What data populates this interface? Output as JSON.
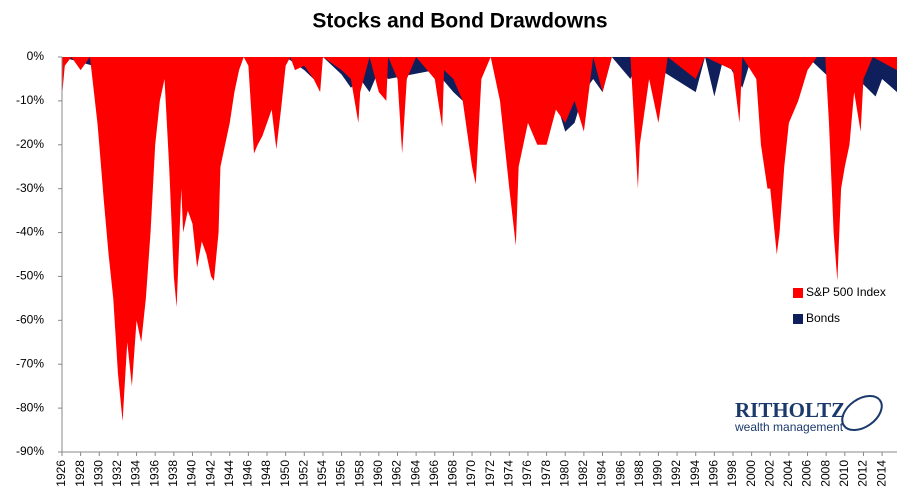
{
  "chart_data": {
    "type": "area",
    "title": "Stocks and Bond Drawdowns",
    "xlim": [
      1926,
      2015.6
    ],
    "ylim": [
      -90,
      0
    ],
    "yticks": [
      {
        "value": 0,
        "label": "0%"
      },
      {
        "value": -10,
        "label": "-10%"
      },
      {
        "value": -20,
        "label": "-20%"
      },
      {
        "value": -30,
        "label": "-30%"
      },
      {
        "value": -40,
        "label": "-40%"
      },
      {
        "value": -50,
        "label": "-50%"
      },
      {
        "value": -60,
        "label": "-60%"
      },
      {
        "value": -70,
        "label": "-70%"
      },
      {
        "value": -80,
        "label": "-80%"
      },
      {
        "value": -90,
        "label": "-90%"
      }
    ],
    "xticks": [
      1926,
      1928,
      1930,
      1932,
      1934,
      1936,
      1938,
      1940,
      1942,
      1944,
      1946,
      1948,
      1950,
      1952,
      1954,
      1956,
      1958,
      1960,
      1962,
      1964,
      1966,
      1968,
      1970,
      1972,
      1974,
      1976,
      1978,
      1980,
      1982,
      1984,
      1986,
      1988,
      1990,
      1992,
      1994,
      1996,
      1998,
      2000,
      2002,
      2004,
      2006,
      2008,
      2010,
      2012,
      2014
    ],
    "grid": false,
    "legend": "right",
    "series": [
      {
        "name": "Bonds",
        "color": "#0f1f5c",
        "x": [
          1926,
          1931,
          1932,
          1933,
          1937,
          1938,
          1950,
          1952,
          1953,
          1954,
          1956,
          1957,
          1958,
          1959,
          1960,
          1961,
          1966,
          1968,
          1969,
          1970,
          1972,
          1974,
          1975,
          1977,
          1979,
          1980,
          1981,
          1982,
          1983,
          1984,
          1985,
          1987,
          1988,
          1994,
          1995,
          1996,
          1997,
          1999,
          2000,
          2003,
          2004,
          2006,
          2008.5,
          2009,
          2013.3,
          2014,
          2015.6
        ],
        "values": [
          0,
          -3,
          -7,
          0,
          -3,
          0,
          0,
          -3,
          -5,
          0,
          -4,
          -7,
          -5,
          -8,
          -3,
          -5,
          -3,
          -8,
          -10,
          -5,
          0,
          -7,
          -4,
          -2,
          -10,
          -17,
          -15,
          -8,
          -5,
          -8,
          0,
          -5,
          0,
          -8,
          0,
          -9,
          0,
          -7,
          0,
          -5,
          -3,
          0,
          -5,
          0,
          -9,
          -5,
          -8
        ]
      },
      {
        "name": "S&P 500 Index",
        "color": "#ff0000",
        "x": [
          1926,
          1926.3,
          1927,
          1928,
          1929,
          1929.8,
          1930,
          1930.5,
          1931,
          1931.5,
          1932,
          1932.5,
          1933,
          1933.5,
          1934,
          1934.5,
          1935,
          1935.5,
          1936,
          1936.5,
          1937,
          1937.5,
          1938,
          1938.3,
          1938.8,
          1939,
          1939.5,
          1940,
          1940.5,
          1941,
          1941.5,
          1942,
          1942.3,
          1942.8,
          1943,
          1943.5,
          1944,
          1944.5,
          1945,
          1945.5,
          1946,
          1946.6,
          1947,
          1947.5,
          1948,
          1948.5,
          1949,
          1949.5,
          1950,
          1950.5,
          1951,
          1952,
          1953,
          1953.7,
          1954,
          1956,
          1957,
          1957.8,
          1958,
          1959,
          1960,
          1960.8,
          1961,
          1962,
          1962.5,
          1963,
          1964,
          1966,
          1966.8,
          1967,
          1968,
          1969,
          1970,
          1970.4,
          1971,
          1972,
          1973,
          1974,
          1974.7,
          1975,
          1976,
          1977,
          1978,
          1979,
          1980,
          1981,
          1982,
          1982.7,
          1983,
          1984,
          1985,
          1987,
          1987.8,
          1988,
          1989,
          1990,
          1991,
          1994,
          1995,
          1998,
          1998.7,
          1999,
          2000.5,
          2001,
          2001.7,
          2002,
          2002.7,
          2003,
          2003.5,
          2004,
          2005,
          2006,
          2007,
          2007.9,
          2008.3,
          2008.8,
          2009.2,
          2009.6,
          2010,
          2010.5,
          2011,
          2011.7,
          2012,
          2013,
          2015.6
        ],
        "values": [
          -9,
          -2,
          0,
          -3,
          0,
          -15,
          -20,
          -33,
          -45,
          -55,
          -72,
          -83,
          -65,
          -75,
          -60,
          -65,
          -55,
          -40,
          -20,
          -10,
          -5,
          -25,
          -50,
          -57,
          -30,
          -40,
          -35,
          -38,
          -48,
          -42,
          -45,
          -50,
          -51,
          -40,
          -25,
          -20,
          -15,
          -8,
          -3,
          0,
          -2,
          -22,
          -20,
          -18,
          -15,
          -12,
          -21,
          -12,
          -2,
          0,
          -3,
          -2,
          -5,
          -8,
          0,
          -3,
          -5,
          -15,
          -8,
          0,
          -8,
          -10,
          0,
          -5,
          -22,
          -5,
          0,
          -5,
          -16,
          -3,
          -5,
          -10,
          -25,
          -29,
          -5,
          0,
          -10,
          -30,
          -43,
          -25,
          -15,
          -20,
          -20,
          -12,
          -15,
          -10,
          -17,
          -5,
          0,
          -8,
          0,
          0,
          -30,
          -20,
          -5,
          -15,
          0,
          -5,
          0,
          -3,
          -15,
          0,
          -5,
          -20,
          -30,
          -30,
          -45,
          -40,
          -25,
          -15,
          -10,
          -3,
          0,
          0,
          -15,
          -40,
          -51,
          -30,
          -25,
          -20,
          -8,
          -17,
          -5,
          0,
          -3
        ]
      }
    ]
  },
  "logo": {
    "name": "RITHOLTZ",
    "tagline": "wealth management"
  }
}
